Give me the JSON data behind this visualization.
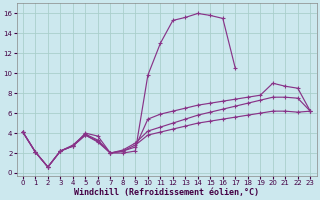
{
  "xlabel": "Windchill (Refroidissement éolien,°C)",
  "bg_color": "#cce8ee",
  "grid_color": "#aacfcc",
  "line_color": "#883388",
  "xlim": [
    -0.5,
    23.5
  ],
  "ylim": [
    -0.3,
    17
  ],
  "xticks": [
    0,
    1,
    2,
    3,
    4,
    5,
    6,
    7,
    8,
    9,
    10,
    11,
    12,
    13,
    14,
    15,
    16,
    17,
    18,
    19,
    20,
    21,
    22,
    23
  ],
  "yticks": [
    0,
    2,
    4,
    6,
    8,
    10,
    12,
    14,
    16
  ],
  "series": [
    {
      "x": [
        0,
        1,
        2,
        3,
        4,
        5,
        6,
        7,
        8,
        9,
        10,
        11,
        12,
        13,
        14,
        15,
        16,
        17,
        18,
        19,
        20,
        21,
        22,
        23
      ],
      "y": [
        4.1,
        2.1,
        0.6,
        2.2,
        2.7,
        4.0,
        3.7,
        2.0,
        2.0,
        2.2,
        9.8,
        13.0,
        15.3,
        15.6,
        16.0,
        15.8,
        15.5,
        10.5,
        null,
        null,
        null,
        null,
        null,
        null
      ]
    },
    {
      "x": [
        0,
        1,
        2,
        3,
        4,
        5,
        6,
        7,
        8,
        9,
        10,
        11,
        12,
        13,
        14,
        15,
        16,
        17,
        18,
        19,
        20,
        21,
        22,
        23
      ],
      "y": [
        4.1,
        2.1,
        0.6,
        2.2,
        2.8,
        3.9,
        3.3,
        2.0,
        2.2,
        2.6,
        5.4,
        5.9,
        6.2,
        6.5,
        6.8,
        7.0,
        7.2,
        7.4,
        7.6,
        7.8,
        9.0,
        8.7,
        8.5,
        6.2
      ]
    },
    {
      "x": [
        0,
        1,
        2,
        3,
        4,
        5,
        6,
        7,
        8,
        9,
        10,
        11,
        12,
        13,
        14,
        15,
        16,
        17,
        18,
        19,
        20,
        21,
        22,
        23
      ],
      "y": [
        4.1,
        2.1,
        0.6,
        2.2,
        2.7,
        3.8,
        3.2,
        2.0,
        2.3,
        3.0,
        4.2,
        4.6,
        5.0,
        5.4,
        5.8,
        6.1,
        6.4,
        6.7,
        7.0,
        7.3,
        7.6,
        7.6,
        7.5,
        6.2
      ]
    },
    {
      "x": [
        0,
        1,
        2,
        3,
        4,
        5,
        6,
        7,
        8,
        9,
        10,
        11,
        12,
        13,
        14,
        15,
        16,
        17,
        18,
        19,
        20,
        21,
        22,
        23
      ],
      "y": [
        4.1,
        2.1,
        0.6,
        2.2,
        2.7,
        3.8,
        3.1,
        2.0,
        2.2,
        2.8,
        3.8,
        4.1,
        4.4,
        4.7,
        5.0,
        5.2,
        5.4,
        5.6,
        5.8,
        6.0,
        6.2,
        6.2,
        6.1,
        6.2
      ]
    }
  ],
  "xlabel_fontsize": 6.0,
  "tick_fontsize": 5.0,
  "lw": 0.85,
  "ms": 2.8
}
